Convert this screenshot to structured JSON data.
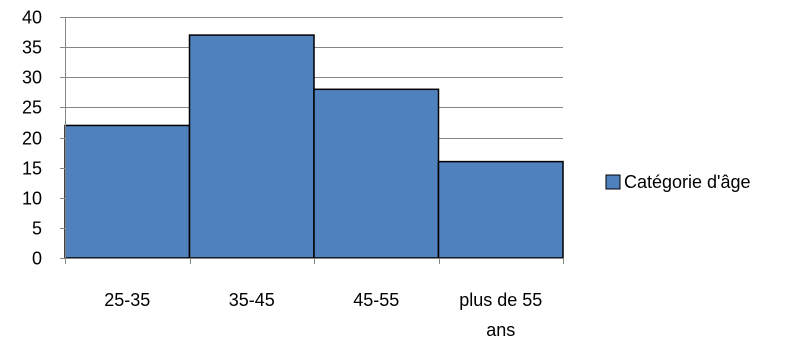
{
  "chart_data": {
    "type": "bar",
    "categories": [
      "25-35",
      "35-45",
      "45-55",
      "plus de 55 ans"
    ],
    "category_lines": [
      [
        "25-35"
      ],
      [
        "35-45"
      ],
      [
        "45-55"
      ],
      [
        "plus de 55",
        "ans"
      ]
    ],
    "series": [
      {
        "name": "Catégorie d'âge",
        "values": [
          22,
          37,
          28,
          16
        ],
        "color": "#4F81BD"
      }
    ],
    "ylim": [
      0,
      40
    ],
    "yticks": [
      0,
      5,
      10,
      15,
      20,
      25,
      30,
      35,
      40
    ],
    "grid": true,
    "legend_position": "right",
    "title": "",
    "xlabel": "",
    "ylabel": ""
  }
}
